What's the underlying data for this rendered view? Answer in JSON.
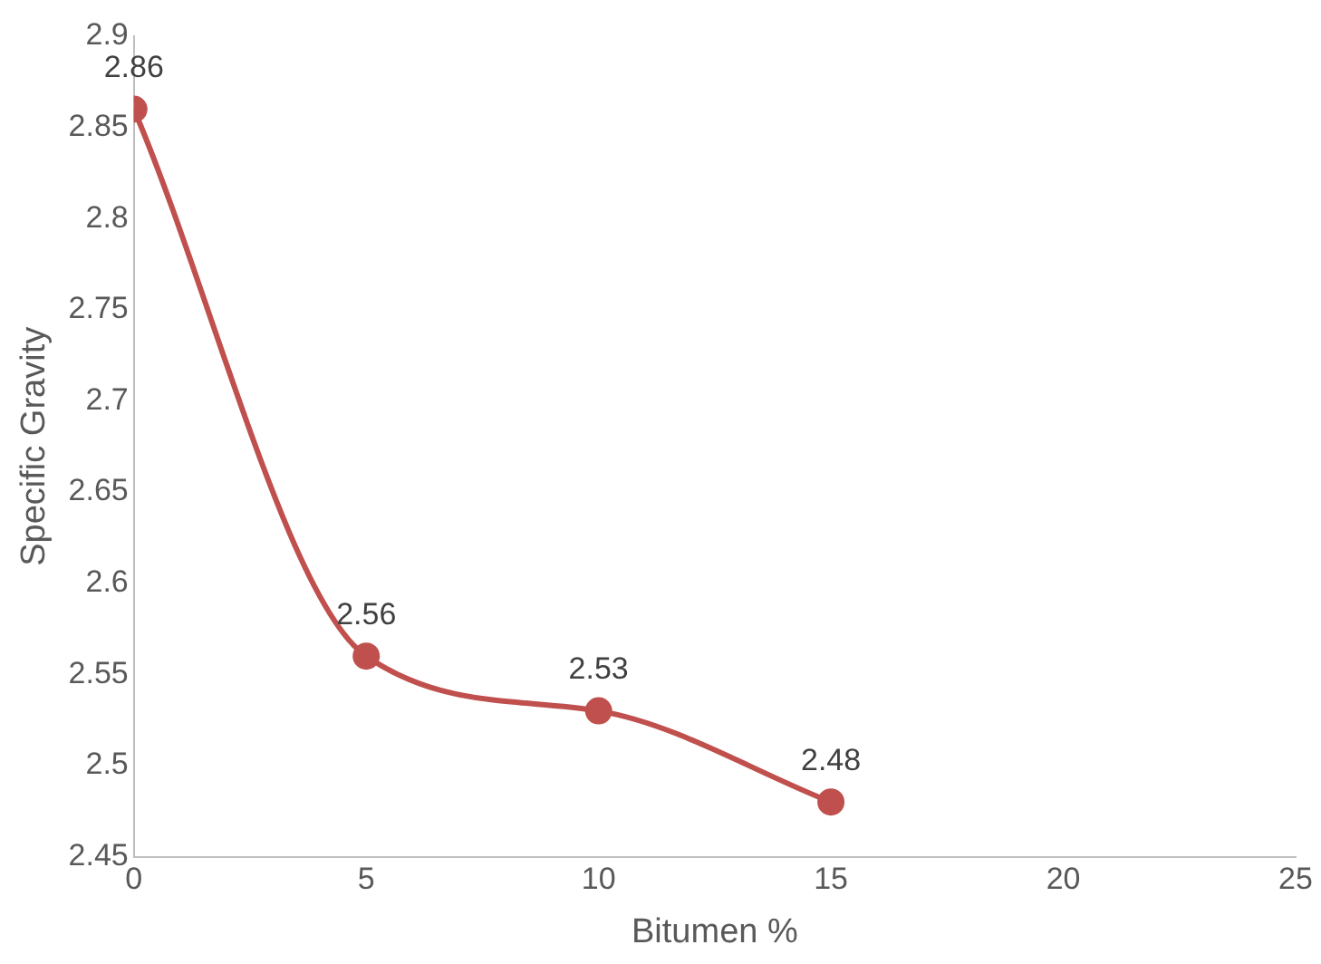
{
  "chart_data": {
    "type": "line",
    "xlabel": "Bitumen %",
    "ylabel": "Specific Gravity",
    "x": [
      0,
      5,
      10,
      15
    ],
    "series": [
      {
        "color": "#c0504d",
        "values": [
          2.86,
          2.56,
          2.53,
          2.48
        ]
      }
    ],
    "xlim": [
      0,
      25
    ],
    "xticks": [
      0,
      5,
      10,
      15,
      20,
      25
    ],
    "ylim": [
      2.45,
      2.9
    ],
    "yticks": [
      2.45,
      2.5,
      2.55,
      2.6,
      2.65,
      2.7,
      2.75,
      2.8,
      2.85,
      2.9
    ],
    "grid": false,
    "legend": false,
    "marker": "circle",
    "line_style": "solid",
    "data_labels": true
  }
}
